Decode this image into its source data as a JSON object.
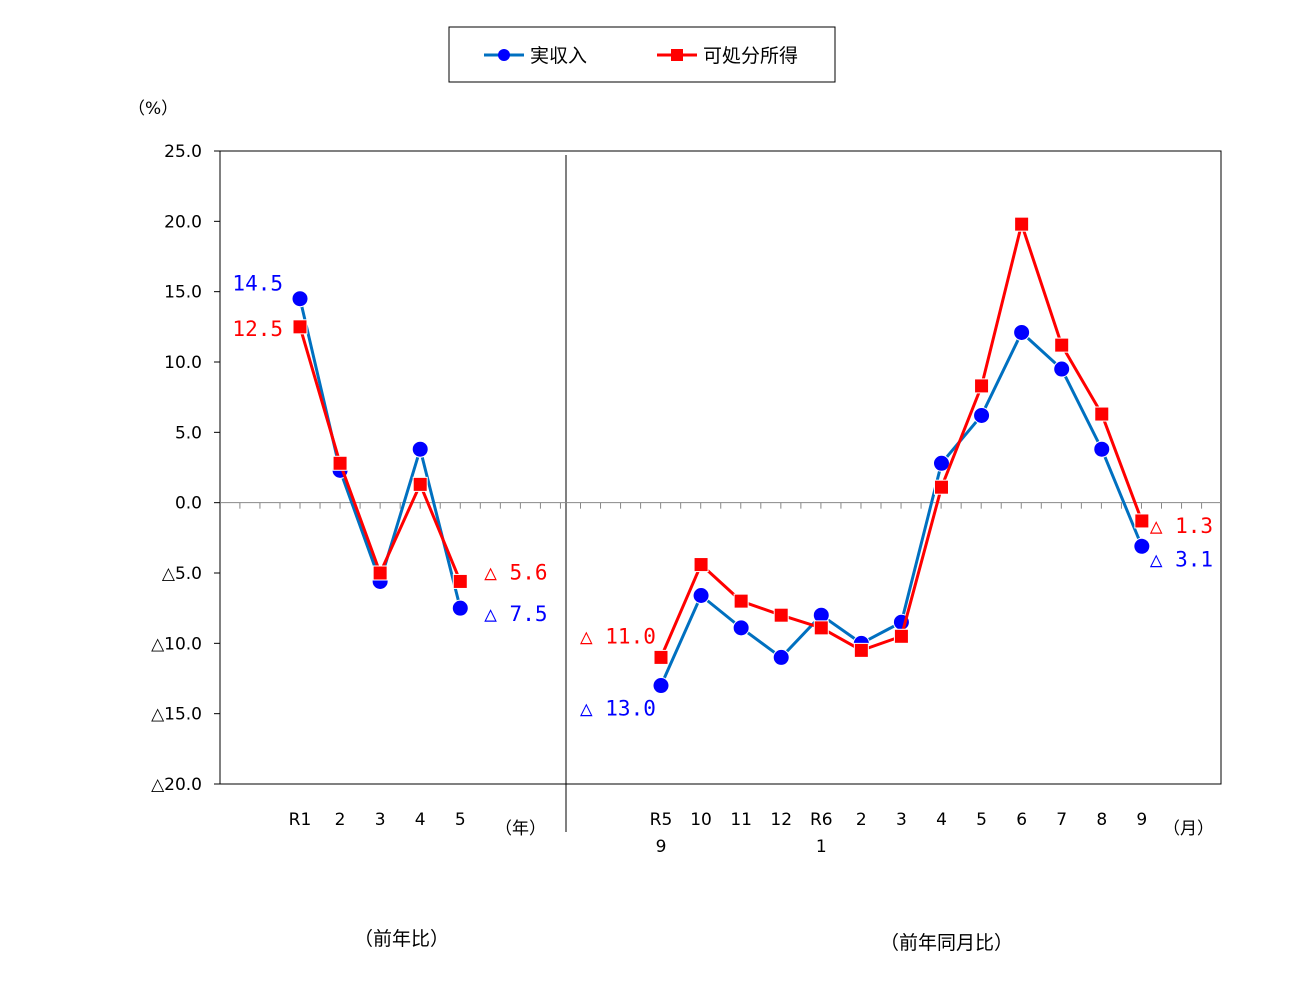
{
  "colors": {
    "income": "#0070C0",
    "income_marker": "#0000FF",
    "disposable": "#FF0000"
  },
  "legend": {
    "income_label": "実収入",
    "disposable_label": "可処分所得"
  },
  "y_unit": "（%）",
  "year_unit": "（年）",
  "month_unit": "（月）",
  "caption_left": "（前年比）",
  "caption_right": "（前年同月比）",
  "chart_data": {
    "type": "line",
    "ylim": [
      -20,
      25
    ],
    "y_ticks": [
      25,
      20,
      15,
      10,
      5,
      0,
      -5,
      -10,
      -15,
      -20
    ],
    "y_tick_labels": [
      "25.0",
      "20.0",
      "15.0",
      "10.0",
      "5.0",
      "0.0",
      "△5.0",
      "△10.0",
      "△15.0",
      "△20.0"
    ],
    "grid": false,
    "legend_position": "top",
    "annual": {
      "categories": [
        "R1",
        "2",
        "3",
        "4",
        "5"
      ],
      "series": [
        {
          "name": "実収入",
          "values": [
            14.5,
            2.3,
            -5.6,
            3.8,
            -7.5
          ]
        },
        {
          "name": "可処分所得",
          "values": [
            12.5,
            2.8,
            -5.0,
            1.3,
            -5.6
          ]
        }
      ],
      "annotations": [
        {
          "series": "実収入",
          "text": "14.5"
        },
        {
          "series": "可処分所得",
          "text": "12.5"
        },
        {
          "series": "可処分所得",
          "text": "△ 5.6"
        },
        {
          "series": "実収入",
          "text": "△ 7.5"
        }
      ]
    },
    "monthly": {
      "categories": [
        {
          "top": "R5",
          "bottom": "9"
        },
        {
          "top": "10",
          "bottom": ""
        },
        {
          "top": "11",
          "bottom": ""
        },
        {
          "top": "12",
          "bottom": ""
        },
        {
          "top": "R6",
          "bottom": "1"
        },
        {
          "top": "2",
          "bottom": ""
        },
        {
          "top": "3",
          "bottom": ""
        },
        {
          "top": "4",
          "bottom": ""
        },
        {
          "top": "5",
          "bottom": ""
        },
        {
          "top": "6",
          "bottom": ""
        },
        {
          "top": "7",
          "bottom": ""
        },
        {
          "top": "8",
          "bottom": ""
        },
        {
          "top": "9",
          "bottom": ""
        }
      ],
      "series": [
        {
          "name": "実収入",
          "values": [
            -13.0,
            -6.6,
            -8.9,
            -11.0,
            -8.0,
            -10.0,
            -8.5,
            2.8,
            6.2,
            12.1,
            9.5,
            3.8,
            -3.1
          ]
        },
        {
          "name": "可処分所得",
          "values": [
            -11.0,
            -4.4,
            -7.0,
            -8.0,
            -8.9,
            -10.5,
            -9.5,
            1.1,
            8.3,
            19.8,
            11.2,
            6.3,
            -1.3
          ]
        }
      ],
      "annotations": [
        {
          "series": "可処分所得",
          "text": "△ 11.0"
        },
        {
          "series": "実収入",
          "text": "△ 13.0"
        },
        {
          "series": "可処分所得",
          "text": "△ 1.3"
        },
        {
          "series": "実収入",
          "text": "△ 3.1"
        }
      ]
    }
  }
}
